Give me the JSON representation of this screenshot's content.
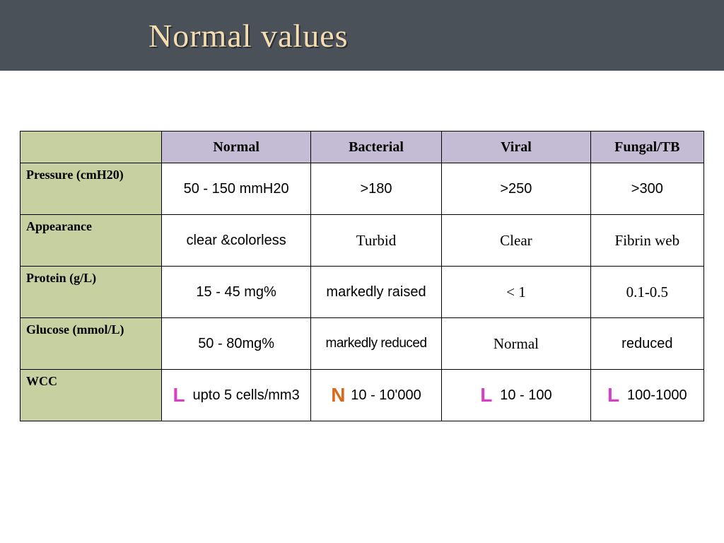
{
  "title": "Normal values",
  "colors": {
    "title_bar_bg": "#4b5159",
    "title_text": "#f4ddb0",
    "title_shadow": "#2b2e33",
    "header_col_bg": "#c3bcd4",
    "header_row_bg": "#c6d0a1",
    "cell_bg": "#ffffff",
    "border": "#000000",
    "marker_L": "#d63fc6",
    "marker_N": "#d96a1a"
  },
  "table": {
    "type": "table",
    "columns": [
      "",
      "Normal",
      "Bacterial",
      "Viral",
      "Fungal/TB"
    ],
    "row_headers": [
      "Pressure (cmH20)",
      "Appearance",
      "Protein (g/L)",
      "Glucose (mmol/L)",
      "WCC"
    ],
    "rows": [
      [
        {
          "value": "50 - 150 mmH20"
        },
        {
          "value": ">180"
        },
        {
          "value": ">250"
        },
        {
          "value": ">300"
        }
      ],
      [
        {
          "value": "clear &colorless"
        },
        {
          "value": "Turbid",
          "serif": true
        },
        {
          "value": "Clear",
          "serif": true
        },
        {
          "value": "Fibrin web",
          "serif": true
        }
      ],
      [
        {
          "value": "15 - 45 mg%"
        },
        {
          "value": "markedly raised"
        },
        {
          "value": "< 1",
          "serif": true
        },
        {
          "value": "0.1-0.5",
          "serif": true
        }
      ],
      [
        {
          "value": "50 - 80mg%"
        },
        {
          "value": "markedly reduced",
          "condensed": true
        },
        {
          "value": "Normal",
          "serif": true
        },
        {
          "value": "reduced"
        }
      ],
      [
        {
          "marker": "L",
          "value": "upto 5 cells/mm3"
        },
        {
          "marker": "N",
          "value": "10 - 10'000"
        },
        {
          "marker": "L",
          "value": "10 - 100"
        },
        {
          "marker": "L",
          "value": "100-1000"
        }
      ]
    ]
  }
}
